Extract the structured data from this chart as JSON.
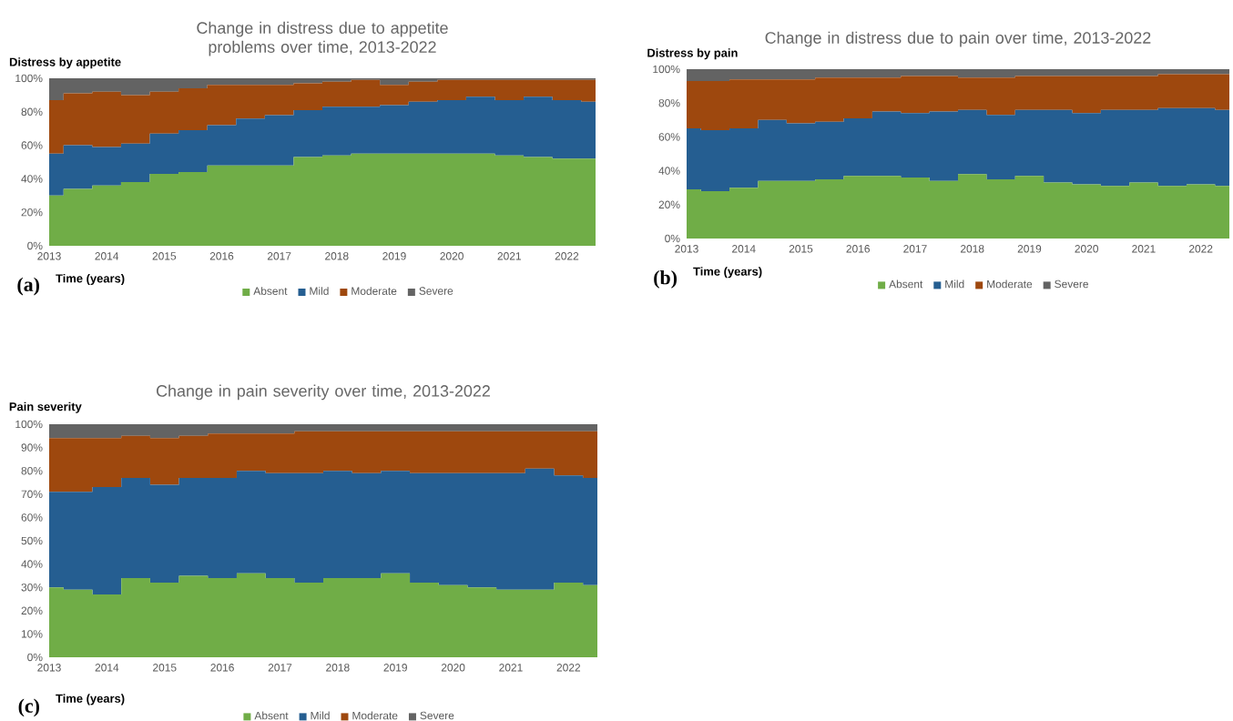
{
  "chart_data": [
    {
      "type": "area",
      "stacked": true,
      "title": "Change in distress due to appetite problems over time, 2013-2022",
      "ylabel": "Distress by appetite",
      "xlabel": "Time (years)",
      "legend": "bottom",
      "annotations": [
        "(a)"
      ],
      "categories": [
        "2013",
        null,
        "2014",
        null,
        "2015",
        null,
        "2016",
        null,
        "2017",
        null,
        "2018",
        null,
        "2019",
        null,
        "2020",
        null,
        "2021",
        null,
        "2022",
        null
      ],
      "ylim": [
        0,
        100
      ],
      "yticks": [
        {
          "value": 0,
          "label": "0%"
        },
        {
          "value": 20,
          "label": "20%"
        },
        {
          "value": 40,
          "label": "40%"
        },
        {
          "value": 60,
          "label": "60%"
        },
        {
          "value": 80,
          "label": "80%"
        },
        {
          "value": 100,
          "label": "100%"
        }
      ],
      "series": [
        {
          "name": "Absent",
          "color": "#70ad47",
          "values": [
            30,
            34,
            36,
            38,
            43,
            44,
            48,
            48,
            48,
            53,
            54,
            55,
            55,
            55,
            55,
            55,
            54,
            53,
            52,
            52
          ]
        },
        {
          "name": "Mild",
          "color": "#255e91",
          "values": [
            25,
            26,
            23,
            23,
            24,
            25,
            24,
            28,
            30,
            28,
            29,
            28,
            29,
            31,
            32,
            34,
            33,
            36,
            35,
            34
          ]
        },
        {
          "name": "Moderate",
          "color": "#9e480e",
          "values": [
            32,
            31,
            33,
            29,
            25,
            25,
            24,
            20,
            18,
            16,
            15,
            16,
            12,
            12,
            12,
            10,
            12,
            10,
            12,
            13
          ]
        },
        {
          "name": "Severe",
          "color": "#636363",
          "values": [
            13,
            9,
            8,
            10,
            8,
            6,
            4,
            4,
            4,
            3,
            2,
            1,
            4,
            2,
            1,
            1,
            1,
            1,
            1,
            1
          ]
        }
      ]
    },
    {
      "type": "area",
      "stacked": true,
      "title": "Change in distress due to pain over time, 2013-2022",
      "ylabel": "Distress by pain",
      "xlabel": "Time (years)",
      "legend": "bottom",
      "annotations": [
        "(b)"
      ],
      "categories": [
        "2013",
        null,
        "2014",
        null,
        "2015",
        null,
        "2016",
        null,
        "2017",
        null,
        "2018",
        null,
        "2019",
        null,
        "2020",
        null,
        "2021",
        null,
        "2022",
        null
      ],
      "ylim": [
        0,
        100
      ],
      "yticks": [
        {
          "value": 0,
          "label": "0%"
        },
        {
          "value": 20,
          "label": "20%"
        },
        {
          "value": 40,
          "label": "40%"
        },
        {
          "value": 60,
          "label": "60%"
        },
        {
          "value": 80,
          "label": "80%"
        },
        {
          "value": 100,
          "label": "100%"
        }
      ],
      "series": [
        {
          "name": "Absent",
          "color": "#70ad47",
          "values": [
            29,
            28,
            30,
            34,
            34,
            35,
            37,
            37,
            36,
            34,
            38,
            35,
            37,
            33,
            32,
            31,
            33,
            31,
            32,
            31
          ]
        },
        {
          "name": "Mild",
          "color": "#255e91",
          "values": [
            36,
            36,
            35,
            36,
            34,
            34,
            34,
            38,
            38,
            41,
            38,
            38,
            39,
            43,
            42,
            45,
            43,
            46,
            45,
            45
          ]
        },
        {
          "name": "Moderate",
          "color": "#9e480e",
          "values": [
            28,
            29,
            29,
            24,
            26,
            26,
            24,
            20,
            22,
            21,
            19,
            22,
            20,
            20,
            22,
            20,
            20,
            20,
            20,
            21
          ]
        },
        {
          "name": "Severe",
          "color": "#636363",
          "values": [
            7,
            7,
            6,
            6,
            6,
            5,
            5,
            5,
            4,
            4,
            5,
            5,
            4,
            4,
            4,
            4,
            4,
            3,
            3,
            3
          ]
        }
      ]
    },
    {
      "type": "area",
      "stacked": true,
      "title": "Change in pain severity over time, 2013-2022",
      "ylabel": "Pain severity",
      "xlabel": "Time (years)",
      "legend": "bottom",
      "annotations": [
        "(c)"
      ],
      "categories": [
        "2013",
        null,
        "2014",
        null,
        "2015",
        null,
        "2016",
        null,
        "2017",
        null,
        "2018",
        null,
        "2019",
        null,
        "2020",
        null,
        "2021",
        null,
        "2022",
        null
      ],
      "ylim": [
        0,
        100
      ],
      "yticks": [
        {
          "value": 0,
          "label": "0%"
        },
        {
          "value": 10,
          "label": "10%"
        },
        {
          "value": 20,
          "label": "20%"
        },
        {
          "value": 30,
          "label": "30%"
        },
        {
          "value": 40,
          "label": "40%"
        },
        {
          "value": 50,
          "label": "50%"
        },
        {
          "value": 60,
          "label": "60%"
        },
        {
          "value": 70,
          "label": "70%"
        },
        {
          "value": 80,
          "label": "80%"
        },
        {
          "value": 90,
          "label": "90%"
        },
        {
          "value": 100,
          "label": "100%"
        }
      ],
      "series": [
        {
          "name": "Absent",
          "color": "#70ad47",
          "values": [
            30,
            29,
            27,
            34,
            32,
            35,
            34,
            36,
            34,
            32,
            34,
            34,
            36,
            32,
            31,
            30,
            29,
            29,
            32,
            31
          ]
        },
        {
          "name": "Mild",
          "color": "#255e91",
          "values": [
            41,
            42,
            46,
            43,
            42,
            42,
            43,
            44,
            45,
            47,
            46,
            45,
            44,
            47,
            48,
            49,
            50,
            52,
            46,
            46
          ]
        },
        {
          "name": "Moderate",
          "color": "#9e480e",
          "values": [
            23,
            23,
            21,
            18,
            20,
            18,
            19,
            16,
            17,
            18,
            17,
            18,
            17,
            18,
            18,
            18,
            18,
            16,
            19,
            20
          ]
        },
        {
          "name": "Severe",
          "color": "#636363",
          "values": [
            6,
            6,
            6,
            5,
            6,
            5,
            4,
            4,
            4,
            3,
            3,
            3,
            3,
            3,
            3,
            3,
            3,
            3,
            3,
            3
          ]
        }
      ]
    }
  ]
}
